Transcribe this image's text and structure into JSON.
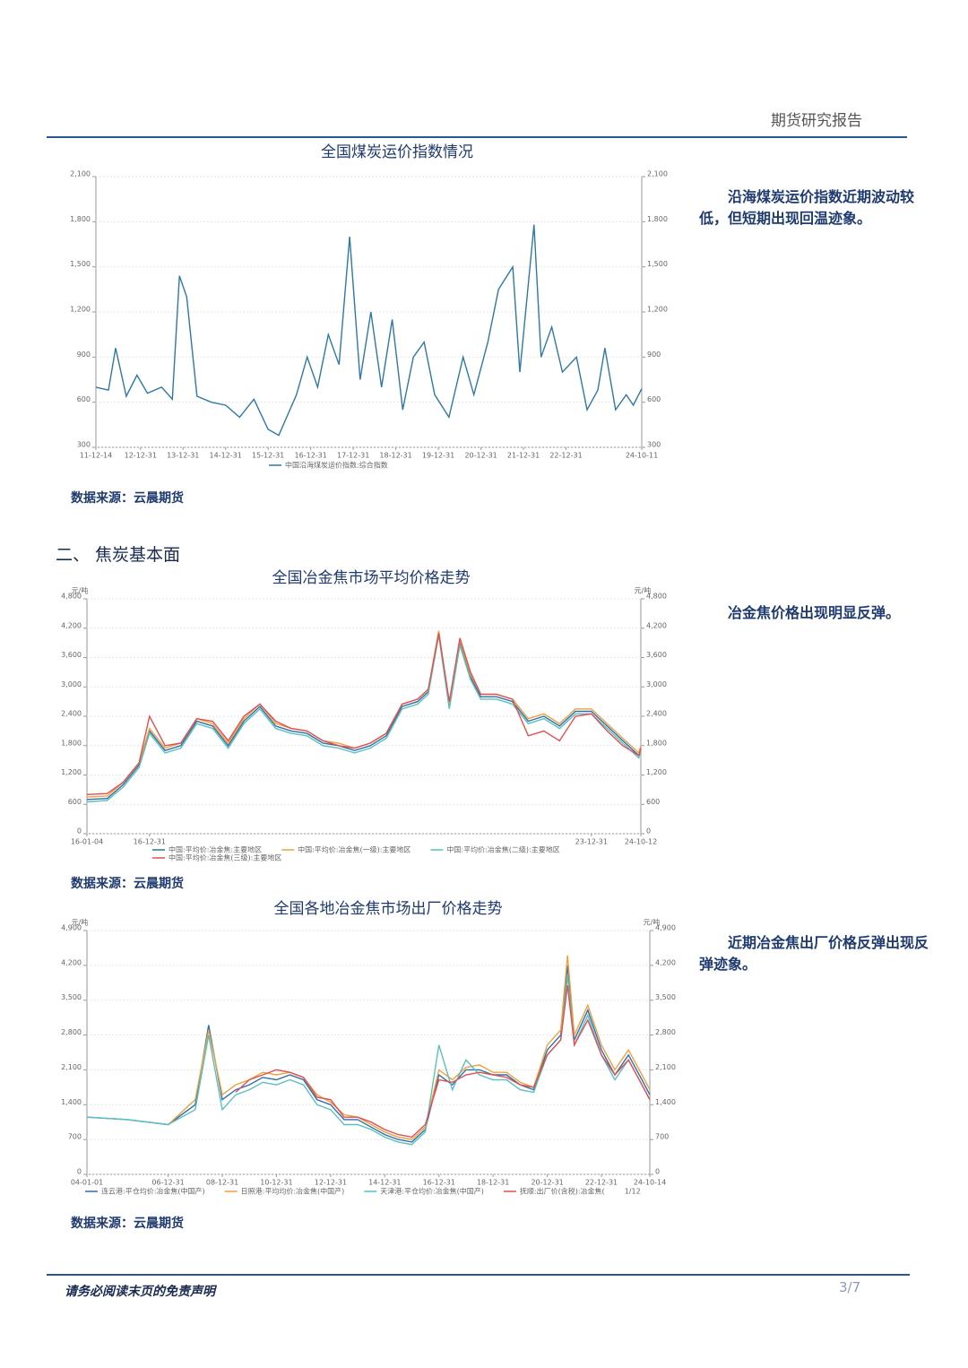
{
  "header": {
    "title": "期货研究报告"
  },
  "section": {
    "heading": "二、 焦炭基本面"
  },
  "footer": {
    "disclaimer": "请务必阅读末页的免责声明",
    "page": "3/7"
  },
  "chart_data": [
    {
      "type": "line",
      "title": "全国煤炭运价指数情况",
      "description": "沿海煤炭运价指数近期波动较低，但短期出现回温迹象。",
      "source": "数据来源：云晨期货",
      "x": [
        "11-12-14",
        "12-03-31",
        "12-05-31",
        "12-08-31",
        "12-11-30",
        "13-02-28",
        "13-06-30",
        "13-09-30",
        "13-11-30",
        "14-01-31",
        "14-04-30",
        "14-08-31",
        "14-12-31",
        "15-04-30",
        "15-08-31",
        "15-12-31",
        "16-03-31",
        "16-08-31",
        "16-11-30",
        "17-02-28",
        "17-05-31",
        "17-08-31",
        "17-11-30",
        "18-02-28",
        "18-05-31",
        "18-08-31",
        "18-11-30",
        "19-02-28",
        "19-05-31",
        "19-08-31",
        "19-11-30",
        "20-03-31",
        "20-07-31",
        "20-10-31",
        "21-02-28",
        "21-05-31",
        "21-09-30",
        "21-11-30",
        "22-03-31",
        "22-05-31",
        "22-08-31",
        "22-11-30",
        "23-03-31",
        "23-06-30",
        "23-09-30",
        "23-11-30",
        "24-02-29",
        "24-05-31",
        "24-07-31",
        "24-10-11"
      ],
      "xticks": [
        "11-12-14",
        "12-12-31",
        "13-12-31",
        "14-12-31",
        "15-12-31",
        "16-12-31",
        "17-12-31",
        "18-12-31",
        "19-12-31",
        "20-12-31",
        "21-12-31",
        "22-12-31",
        "24-10-11"
      ],
      "ylim": [
        300,
        2100
      ],
      "yticks": [
        300,
        600,
        900,
        {
          "value": 1200,
          "label": "1,200"
        },
        {
          "value": 1500,
          "label": "1,500"
        },
        {
          "value": 1800,
          "label": "1,800"
        },
        {
          "value": 2100,
          "label": "2,100"
        }
      ],
      "grid": true,
      "series": [
        {
          "name": "中国沿海煤炭运价指数:综合指数",
          "color": "#2e78a4",
          "values": [
            700,
            680,
            960,
            640,
            780,
            660,
            700,
            620,
            1440,
            1300,
            640,
            600,
            580,
            500,
            620,
            420,
            380,
            650,
            900,
            700,
            1050,
            850,
            1700,
            750,
            1200,
            700,
            1150,
            550,
            900,
            1000,
            650,
            500,
            900,
            650,
            1000,
            1350,
            1500,
            800,
            1780,
            900,
            1100,
            800,
            900,
            550,
            680,
            960,
            550,
            650,
            580,
            690
          ]
        }
      ]
    },
    {
      "type": "line",
      "title": "全国冶金焦市场平均价格走势",
      "description": "冶金焦价格出现明显反弹。",
      "source": "数据来源：云晨期货",
      "unit": "元/吨",
      "x": [
        "16-01-04",
        "16-04-30",
        "16-07-31",
        "16-10-31",
        "16-12-31",
        "17-03-31",
        "17-06-30",
        "17-09-30",
        "17-12-31",
        "18-03-31",
        "18-06-30",
        "18-09-30",
        "18-12-31",
        "19-03-31",
        "19-06-30",
        "19-09-30",
        "19-12-31",
        "20-03-31",
        "20-06-30",
        "20-09-30",
        "20-12-31",
        "21-03-31",
        "21-05-31",
        "21-07-31",
        "21-09-30",
        "21-11-30",
        "22-01-31",
        "22-03-31",
        "22-06-30",
        "22-09-30",
        "22-12-31",
        "23-03-31",
        "23-06-30",
        "23-09-30",
        "23-12-31",
        "24-03-31",
        "24-06-30",
        "24-09-30",
        "24-10-12"
      ],
      "xticks": [
        "16-01-04",
        "16-12-31",
        "23-12-31",
        "24-10-12"
      ],
      "ylim": [
        0,
        4800
      ],
      "yticks": [
        0,
        600,
        {
          "value": 1200,
          "label": "1,200"
        },
        {
          "value": 1800,
          "label": "1,800"
        },
        {
          "value": 2400,
          "label": "2,400"
        },
        {
          "value": 3000,
          "label": "3,000"
        },
        {
          "value": 3600,
          "label": "3,600"
        },
        {
          "value": 4200,
          "label": "4,200"
        },
        {
          "value": 4800,
          "label": "4,800"
        }
      ],
      "grid": true,
      "series": [
        {
          "name": "中国:平均价:冶金焦:主要地区",
          "color": "#2f6fa8",
          "values": [
            700,
            720,
            1000,
            1400,
            2100,
            1700,
            1800,
            2300,
            2200,
            1800,
            2300,
            2600,
            2200,
            2100,
            2050,
            1850,
            1800,
            1700,
            1800,
            2000,
            2600,
            2700,
            2900,
            4100,
            2600,
            3900,
            3200,
            2800,
            2800,
            2700,
            2300,
            2400,
            2200,
            2500,
            2500,
            2200,
            1900,
            1600,
            1750
          ]
        },
        {
          "name": "中国:平均价:冶金焦(一级):主要地区",
          "color": "#f0a040",
          "values": [
            750,
            770,
            1050,
            1450,
            2150,
            1750,
            1850,
            2350,
            2250,
            1850,
            2350,
            2650,
            2250,
            2150,
            2100,
            1900,
            1850,
            1750,
            1850,
            2050,
            2650,
            2750,
            2950,
            4150,
            2650,
            3950,
            3250,
            2850,
            2850,
            2750,
            2350,
            2450,
            2250,
            2550,
            2550,
            2250,
            1950,
            1650,
            1800
          ]
        },
        {
          "name": "中国:平均价:冶金焦(二级):主要地区",
          "color": "#5bc0c0",
          "values": [
            650,
            680,
            950,
            1350,
            2050,
            1650,
            1750,
            2250,
            2150,
            1750,
            2250,
            2550,
            2150,
            2050,
            2000,
            1800,
            1750,
            1650,
            1750,
            1950,
            2550,
            2650,
            2850,
            4050,
            2550,
            3850,
            3150,
            2750,
            2750,
            2650,
            2250,
            2350,
            2150,
            2450,
            2450,
            2150,
            1850,
            1550,
            1700
          ]
        },
        {
          "name": "中国:平均价:冶金焦(三级):主要地区",
          "color": "#e05050",
          "values": [
            800,
            820,
            1050,
            1450,
            2400,
            1800,
            1850,
            2350,
            2300,
            1900,
            2400,
            2650,
            2300,
            2150,
            2100,
            1900,
            1800,
            1750,
            1850,
            2050,
            2650,
            2750,
            2950,
            4100,
            2700,
            4000,
            3300,
            2850,
            2850,
            2750,
            2000,
            2100,
            1900,
            2400,
            2450,
            2100,
            1800,
            1600,
            1750
          ]
        }
      ]
    },
    {
      "type": "line",
      "title": "全国各地冶金焦市场出厂价格走势",
      "description": "近期冶金焦出厂价格反弹出现反弹迹象。",
      "source": "数据来源：云晨期货",
      "unit": "元/吨",
      "legend_pager": "1/12",
      "x": [
        "04-01-01",
        "05-06-30",
        "06-12-31",
        "07-12-31",
        "08-06-30",
        "08-12-31",
        "09-06-30",
        "09-12-31",
        "10-06-30",
        "10-12-31",
        "11-06-30",
        "11-12-31",
        "12-06-30",
        "12-12-31",
        "13-06-30",
        "13-12-31",
        "14-06-30",
        "14-12-31",
        "15-06-30",
        "15-12-31",
        "16-06-30",
        "16-12-31",
        "17-06-30",
        "17-12-31",
        "18-06-30",
        "18-12-31",
        "19-06-30",
        "19-12-31",
        "20-06-30",
        "20-12-31",
        "21-06-30",
        "21-09-30",
        "21-12-31",
        "22-06-30",
        "22-12-31",
        "23-06-30",
        "23-12-31",
        "24-06-30",
        "24-10-14"
      ],
      "xticks": [
        "04-01-01",
        "06-12-31",
        "08-12-31",
        "10-12-31",
        "12-12-31",
        "14-12-31",
        "16-12-31",
        "18-12-31",
        "20-12-31",
        "22-12-31",
        "24-10-14"
      ],
      "ylim": [
        0,
        4900
      ],
      "yticks": [
        0,
        700,
        {
          "value": 1400,
          "label": "1,400"
        },
        {
          "value": 2100,
          "label": "2,100"
        },
        {
          "value": 2800,
          "label": "2,800"
        },
        {
          "value": 3500,
          "label": "3,500"
        },
        {
          "value": 4200,
          "label": "4,200"
        },
        {
          "value": 4900,
          "label": "4,900"
        }
      ],
      "grid": true,
      "series": [
        {
          "name": "连云港:平仓均价:冶金焦(中国产)",
          "color": "#2f6fa8",
          "values": [
            1150,
            1100,
            1000,
            1400,
            3000,
            1500,
            1700,
            1800,
            1950,
            1900,
            2000,
            1900,
            1500,
            1400,
            1100,
            1100,
            950,
            800,
            700,
            650,
            900,
            2000,
            1800,
            2100,
            2100,
            2000,
            2000,
            1800,
            1700,
            2500,
            2800,
            4200,
            2700,
            3300,
            2500,
            2000,
            2400,
            1900,
            1600
          ]
        },
        {
          "name": "日照港:平均均价:冶金焦(中国产)",
          "color": "#f0a040",
          "values": [
            null,
            null,
            1000,
            1500,
            2900,
            1600,
            1800,
            1900,
            2050,
            2000,
            2050,
            1950,
            1600,
            1450,
            1200,
            1150,
            1000,
            850,
            750,
            700,
            950,
            2100,
            1900,
            2150,
            2200,
            2050,
            2050,
            1850,
            1750,
            2600,
            2900,
            4400,
            2800,
            3400,
            2600,
            2100,
            2500,
            2000,
            1700
          ]
        },
        {
          "name": "天津港:平仓均价:冶金焦(中国产)",
          "color": "#5bc0c0",
          "values": [
            1150,
            1100,
            1000,
            1300,
            2800,
            1300,
            1600,
            1700,
            1850,
            1800,
            1900,
            1800,
            1400,
            1300,
            1000,
            1000,
            900,
            750,
            650,
            600,
            850,
            2600,
            1700,
            2300,
            2000,
            1900,
            1900,
            1700,
            1650,
            2400,
            2700,
            4000,
            2600,
            3200,
            2400,
            1900,
            2300,
            1800,
            1500
          ]
        },
        {
          "name": "抚顺:出厂价(含税):冶金焦(",
          "color": "#e05050",
          "values": [
            null,
            null,
            null,
            null,
            null,
            null,
            1650,
            1900,
            2000,
            2100,
            2050,
            1950,
            1550,
            1500,
            1150,
            1150,
            1050,
            900,
            800,
            750,
            1000,
            1900,
            1850,
            2000,
            2050,
            2000,
            1950,
            1800,
            1750,
            2400,
            2700,
            3800,
            2600,
            3100,
            2400,
            2000,
            2300,
            1800,
            1500
          ]
        }
      ]
    }
  ]
}
